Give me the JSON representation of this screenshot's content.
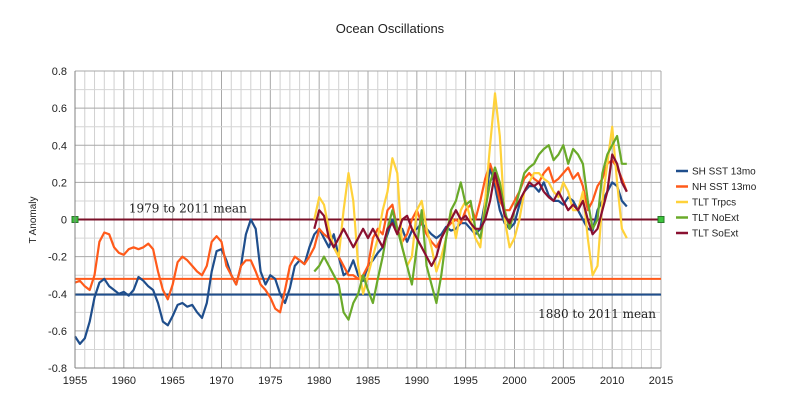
{
  "chart_data": {
    "type": "line",
    "title": "Ocean Oscillations",
    "xlabel": "",
    "ylabel": "T Anomaly",
    "xlim": [
      1955,
      2015
    ],
    "ylim": [
      -0.8,
      0.8
    ],
    "x_ticks": [
      1955,
      1960,
      1965,
      1970,
      1975,
      1980,
      1985,
      1990,
      1995,
      2000,
      2005,
      2010,
      2015
    ],
    "y_ticks": [
      -0.8,
      -0.6,
      -0.4,
      -0.2,
      0,
      0.2,
      0.4,
      0.6,
      0.8
    ],
    "grid": true,
    "legend": "right",
    "series": [
      {
        "name": "SH SST 13mo",
        "color": "#1f4e8c",
        "x": [
          1955,
          1955.5,
          1956,
          1956.5,
          1957,
          1957.5,
          1958,
          1958.5,
          1959,
          1959.5,
          1960,
          1960.5,
          1961,
          1961.5,
          1962,
          1962.5,
          1963,
          1963.5,
          1964,
          1964.5,
          1965,
          1965.5,
          1966,
          1966.5,
          1967,
          1967.5,
          1968,
          1968.5,
          1969,
          1969.5,
          1970,
          1970.5,
          1971,
          1971.5,
          1972,
          1972.5,
          1973,
          1973.5,
          1974,
          1974.5,
          1975,
          1975.5,
          1976,
          1976.5,
          1977,
          1977.5,
          1978,
          1978.5,
          1979,
          1979.5,
          1980,
          1980.5,
          1981,
          1981.5,
          1982,
          1982.5,
          1983,
          1983.5,
          1984,
          1984.5,
          1985,
          1985.5,
          1986,
          1986.5,
          1987,
          1987.5,
          1988,
          1988.5,
          1989,
          1989.5,
          1990,
          1990.5,
          1991,
          1991.5,
          1992,
          1992.5,
          1993,
          1993.5,
          1994,
          1994.5,
          1995,
          1995.5,
          1996,
          1996.5,
          1997,
          1997.5,
          1998,
          1998.5,
          1999,
          1999.5,
          2000,
          2000.5,
          2001,
          2001.5,
          2002,
          2002.5,
          2003,
          2003.5,
          2004,
          2004.5,
          2005,
          2005.5,
          2006,
          2006.5,
          2007,
          2007.5,
          2008,
          2008.5,
          2009,
          2009.5,
          2010,
          2010.5,
          2011,
          2011.5
        ],
        "y": [
          -0.63,
          -0.67,
          -0.64,
          -0.55,
          -0.42,
          -0.34,
          -0.32,
          -0.36,
          -0.38,
          -0.4,
          -0.39,
          -0.41,
          -0.38,
          -0.31,
          -0.33,
          -0.36,
          -0.38,
          -0.45,
          -0.55,
          -0.57,
          -0.52,
          -0.46,
          -0.45,
          -0.47,
          -0.46,
          -0.5,
          -0.53,
          -0.45,
          -0.28,
          -0.17,
          -0.16,
          -0.22,
          -0.3,
          -0.35,
          -0.25,
          -0.08,
          0.0,
          -0.05,
          -0.28,
          -0.35,
          -0.3,
          -0.32,
          -0.4,
          -0.45,
          -0.37,
          -0.25,
          -0.22,
          -0.24,
          -0.15,
          -0.08,
          -0.05,
          -0.1,
          -0.15,
          -0.08,
          -0.2,
          -0.3,
          -0.28,
          -0.22,
          -0.3,
          -0.33,
          -0.25,
          -0.22,
          -0.18,
          -0.15,
          -0.08,
          0.0,
          -0.05,
          -0.05,
          -0.12,
          -0.06,
          -0.05,
          -0.02,
          -0.05,
          -0.08,
          -0.1,
          -0.08,
          -0.04,
          -0.06,
          -0.05,
          -0.02,
          -0.02,
          -0.05,
          -0.08,
          -0.05,
          0.1,
          0.28,
          0.18,
          0.05,
          -0.02,
          -0.05,
          -0.02,
          0.08,
          0.15,
          0.18,
          0.18,
          0.15,
          0.2,
          0.13,
          0.1,
          0.1,
          0.08,
          0.12,
          0.1,
          0.05,
          0.0,
          -0.05,
          -0.06,
          0.05,
          0.1,
          0.15,
          0.2,
          0.18,
          0.1,
          0.07
        ]
      },
      {
        "name": "NH SST 13mo",
        "color": "#ff5a1a",
        "x": [
          1955,
          1955.5,
          1956,
          1956.5,
          1957,
          1957.5,
          1958,
          1958.5,
          1959,
          1959.5,
          1960,
          1960.5,
          1961,
          1961.5,
          1962,
          1962.5,
          1963,
          1963.5,
          1964,
          1964.5,
          1965,
          1965.5,
          1966,
          1966.5,
          1967,
          1967.5,
          1968,
          1968.5,
          1969,
          1969.5,
          1970,
          1970.5,
          1971,
          1971.5,
          1972,
          1972.5,
          1973,
          1973.5,
          1974,
          1974.5,
          1975,
          1975.5,
          1976,
          1976.5,
          1977,
          1977.5,
          1978,
          1978.5,
          1979,
          1979.5,
          1980,
          1980.5,
          1981,
          1981.5,
          1982,
          1982.5,
          1983,
          1983.5,
          1984,
          1984.5,
          1985,
          1985.5,
          1986,
          1986.5,
          1987,
          1987.5,
          1988,
          1988.5,
          1989,
          1989.5,
          1990,
          1990.5,
          1991,
          1991.5,
          1992,
          1992.5,
          1993,
          1993.5,
          1994,
          1994.5,
          1995,
          1995.5,
          1996,
          1996.5,
          1997,
          1997.5,
          1998,
          1998.5,
          1999,
          1999.5,
          2000,
          2000.5,
          2001,
          2001.5,
          2002,
          2002.5,
          2003,
          2003.5,
          2004,
          2004.5,
          2005,
          2005.5,
          2006,
          2006.5,
          2007,
          2007.5,
          2008,
          2008.5,
          2009,
          2009.5,
          2010,
          2010.5,
          2011,
          2011.5
        ],
        "y": [
          -0.34,
          -0.33,
          -0.36,
          -0.38,
          -0.3,
          -0.12,
          -0.07,
          -0.08,
          -0.15,
          -0.18,
          -0.19,
          -0.16,
          -0.15,
          -0.16,
          -0.15,
          -0.13,
          -0.16,
          -0.28,
          -0.38,
          -0.43,
          -0.35,
          -0.23,
          -0.2,
          -0.22,
          -0.25,
          -0.28,
          -0.3,
          -0.25,
          -0.12,
          -0.09,
          -0.12,
          -0.25,
          -0.3,
          -0.35,
          -0.25,
          -0.22,
          -0.22,
          -0.28,
          -0.35,
          -0.38,
          -0.42,
          -0.48,
          -0.5,
          -0.38,
          -0.25,
          -0.2,
          -0.22,
          -0.24,
          -0.2,
          -0.15,
          -0.05,
          -0.08,
          -0.1,
          -0.15,
          -0.2,
          -0.25,
          -0.3,
          -0.3,
          -0.32,
          -0.3,
          -0.25,
          -0.1,
          -0.05,
          -0.08,
          0.05,
          0.08,
          -0.05,
          -0.12,
          -0.08,
          0.0,
          0.05,
          -0.02,
          -0.08,
          -0.12,
          -0.15,
          -0.1,
          -0.05,
          -0.02,
          0.0,
          -0.02,
          0.05,
          0.08,
          0.0,
          0.1,
          0.22,
          0.3,
          0.22,
          0.1,
          0.05,
          0.05,
          0.1,
          0.15,
          0.22,
          0.25,
          0.22,
          0.2,
          0.25,
          0.28,
          0.2,
          0.22,
          0.25,
          0.28,
          0.22,
          0.25,
          0.18,
          0.05,
          0.1,
          0.18,
          0.22,
          0.3,
          0.32,
          0.28,
          0.22,
          0.15
        ]
      },
      {
        "name": "TLT Trpcs",
        "color": "#ffd23a",
        "x": [
          1979.5,
          1980,
          1980.5,
          1981,
          1981.5,
          1982,
          1982.5,
          1983,
          1983.5,
          1984,
          1984.5,
          1985,
          1985.5,
          1986,
          1986.5,
          1987,
          1987.5,
          1988,
          1988.5,
          1989,
          1989.5,
          1990,
          1990.5,
          1991,
          1991.5,
          1992,
          1992.5,
          1993,
          1993.5,
          1994,
          1994.5,
          1995,
          1995.5,
          1996,
          1996.5,
          1997,
          1997.5,
          1998,
          1998.5,
          1999,
          1999.5,
          2000,
          2000.5,
          2001,
          2001.5,
          2002,
          2002.5,
          2003,
          2003.5,
          2004,
          2004.5,
          2005,
          2005.5,
          2006,
          2006.5,
          2007,
          2007.5,
          2008,
          2008.5,
          2009,
          2009.5,
          2010,
          2010.5,
          2011,
          2011.5
        ],
        "y": [
          0.0,
          0.12,
          0.08,
          -0.05,
          -0.15,
          -0.2,
          0.05,
          0.25,
          0.1,
          -0.25,
          -0.4,
          -0.3,
          -0.2,
          -0.1,
          0.05,
          0.15,
          0.33,
          0.25,
          -0.15,
          -0.25,
          -0.2,
          0.05,
          0.1,
          -0.05,
          -0.15,
          -0.28,
          -0.2,
          -0.1,
          0.05,
          -0.1,
          0.05,
          0.1,
          0.0,
          -0.1,
          -0.15,
          0.1,
          0.4,
          0.68,
          0.45,
          0.0,
          -0.15,
          -0.1,
          0.0,
          0.15,
          0.2,
          0.25,
          0.25,
          0.22,
          0.2,
          0.15,
          0.12,
          0.2,
          0.15,
          0.05,
          0.05,
          0.15,
          -0.1,
          -0.3,
          -0.25,
          0.1,
          0.3,
          0.5,
          0.2,
          -0.05,
          -0.1
        ]
      },
      {
        "name": "TLT NoExt",
        "color": "#6aaa2a",
        "x": [
          1979.5,
          1980,
          1980.5,
          1981,
          1981.5,
          1982,
          1982.5,
          1983,
          1983.5,
          1984,
          1984.5,
          1985,
          1985.5,
          1986,
          1986.5,
          1987,
          1987.5,
          1988,
          1988.5,
          1989,
          1989.5,
          1990,
          1990.5,
          1991,
          1991.5,
          1992,
          1992.5,
          1993,
          1993.5,
          1994,
          1994.5,
          1995,
          1995.5,
          1996,
          1996.5,
          1997,
          1997.5,
          1998,
          1998.5,
          1999,
          1999.5,
          2000,
          2000.5,
          2001,
          2001.5,
          2002,
          2002.5,
          2003,
          2003.5,
          2004,
          2004.5,
          2005,
          2005.5,
          2006,
          2006.5,
          2007,
          2007.5,
          2008,
          2008.5,
          2009,
          2009.5,
          2010,
          2010.5,
          2011,
          2011.5
        ],
        "y": [
          -0.28,
          -0.25,
          -0.2,
          -0.25,
          -0.3,
          -0.35,
          -0.5,
          -0.54,
          -0.45,
          -0.4,
          -0.3,
          -0.38,
          -0.45,
          -0.32,
          -0.2,
          -0.05,
          0.05,
          -0.05,
          -0.15,
          -0.25,
          -0.35,
          -0.15,
          0.05,
          -0.25,
          -0.35,
          -0.45,
          -0.3,
          -0.1,
          0.05,
          0.1,
          0.2,
          0.08,
          0.1,
          -0.05,
          -0.1,
          0.05,
          0.2,
          0.28,
          0.2,
          0.05,
          -0.05,
          0.05,
          0.15,
          0.25,
          0.28,
          0.3,
          0.35,
          0.38,
          0.4,
          0.32,
          0.35,
          0.4,
          0.3,
          0.38,
          0.35,
          0.3,
          0.1,
          -0.05,
          0.0,
          0.25,
          0.35,
          0.4,
          0.45,
          0.3,
          0.3
        ]
      },
      {
        "name": "TLT SoExt",
        "color": "#8a1030",
        "x": [
          1979.5,
          1980,
          1980.5,
          1981,
          1981.5,
          1982,
          1982.5,
          1983,
          1983.5,
          1984,
          1984.5,
          1985,
          1985.5,
          1986,
          1986.5,
          1987,
          1987.5,
          1988,
          1988.5,
          1989,
          1989.5,
          1990,
          1990.5,
          1991,
          1991.5,
          1992,
          1992.5,
          1993,
          1993.5,
          1994,
          1994.5,
          1995,
          1995.5,
          1996,
          1996.5,
          1997,
          1997.5,
          1998,
          1998.5,
          1999,
          1999.5,
          2000,
          2000.5,
          2001,
          2001.5,
          2002,
          2002.5,
          2003,
          2003.5,
          2004,
          2004.5,
          2005,
          2005.5,
          2006,
          2006.5,
          2007,
          2007.5,
          2008,
          2008.5,
          2009,
          2009.5,
          2010,
          2010.5,
          2011,
          2011.5
        ],
        "y": [
          -0.05,
          0.05,
          0.02,
          -0.1,
          -0.15,
          -0.1,
          -0.05,
          -0.1,
          -0.15,
          -0.1,
          -0.05,
          -0.1,
          -0.05,
          -0.1,
          -0.15,
          -0.05,
          -0.02,
          -0.08,
          0.0,
          0.02,
          -0.05,
          -0.1,
          -0.15,
          -0.2,
          -0.25,
          -0.2,
          -0.1,
          -0.05,
          0.0,
          0.05,
          0.0,
          0.02,
          -0.02,
          -0.05,
          -0.05,
          0.0,
          0.1,
          0.25,
          0.15,
          0.02,
          -0.02,
          0.05,
          0.1,
          0.15,
          0.2,
          0.18,
          0.2,
          0.15,
          0.12,
          0.1,
          0.15,
          0.1,
          0.05,
          0.08,
          0.05,
          0.1,
          0.0,
          -0.08,
          -0.05,
          0.05,
          0.15,
          0.35,
          0.3,
          0.2,
          0.15
        ]
      }
    ],
    "reference_lines": [
      {
        "value": 0,
        "color": "#7a1028"
      },
      {
        "value": -0.32,
        "color": "#ff5a1a"
      },
      {
        "value": -0.405,
        "color": "#1f4e8c"
      }
    ],
    "annotations": [
      {
        "text": "1979 to 2011 mean",
        "x": 1955.6,
        "y": 0.06
      },
      {
        "text": "1880 to 2011 mean",
        "x": 1997.5,
        "y": -0.51
      }
    ]
  }
}
